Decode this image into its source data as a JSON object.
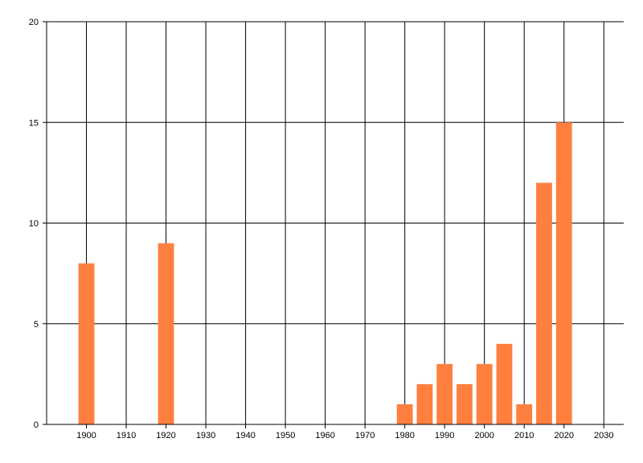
{
  "chart_data": {
    "type": "bar",
    "title": "",
    "xlabel": "",
    "ylabel": "",
    "x": [
      1900,
      1920,
      1980,
      1985,
      1990,
      1995,
      2000,
      2005,
      2010,
      2015,
      2020
    ],
    "values": [
      8,
      9,
      1,
      2,
      3,
      2,
      3,
      4,
      1,
      12,
      15
    ],
    "xlim": [
      1890,
      2035
    ],
    "ylim": [
      0,
      20
    ],
    "x_ticks": [
      "1900",
      "1910",
      "1920",
      "1930",
      "1940",
      "1950",
      "1960",
      "1970",
      "1980",
      "1990",
      "2000",
      "2010",
      "2020",
      "2030"
    ],
    "y_ticks": [
      "0",
      "5",
      "10",
      "15",
      "20"
    ],
    "bar_color": "#ff7f3f",
    "grid": true,
    "legend": "none"
  }
}
